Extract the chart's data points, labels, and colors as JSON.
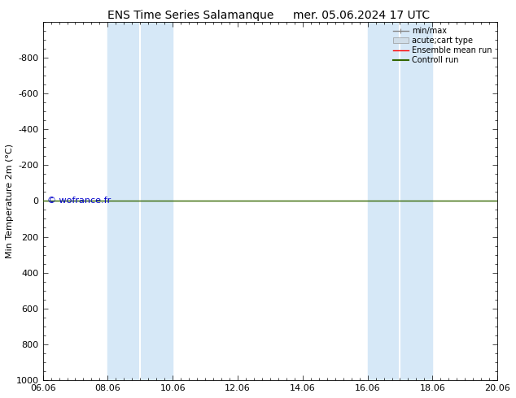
{
  "title": "ENS Time Series Salamanque",
  "date_str": "mer. 05.06.2024 17 UTC",
  "ylabel": "Min Temperature 2m (°C)",
  "xlim": [
    0,
    14
  ],
  "ylim": [
    1000,
    -1000
  ],
  "yticks": [
    -800,
    -600,
    -400,
    -200,
    0,
    200,
    400,
    600,
    800,
    1000
  ],
  "xtick_labels": [
    "06.06",
    "08.06",
    "10.06",
    "12.06",
    "14.06",
    "16.06",
    "18.06",
    "20.06"
  ],
  "xtick_positions": [
    0,
    2,
    4,
    6,
    8,
    10,
    12,
    14
  ],
  "shaded_bands": [
    [
      2,
      3
    ],
    [
      3.5,
      4
    ],
    [
      10,
      10.5
    ],
    [
      11,
      12
    ]
  ],
  "shaded_color": "#d6e8f7",
  "control_run_y": 0,
  "watermark": "© wofrance.fr",
  "legend_labels": [
    "min/max",
    "acute;cart type",
    "Ensemble mean run",
    "Controll run"
  ],
  "legend_line_color": "#888888",
  "legend_box_color": "#d0dde8",
  "legend_red": "#ff0000",
  "legend_green": "#336600",
  "background_color": "#ffffff",
  "plot_bg_color": "#ffffff",
  "title_fontsize": 10,
  "axis_fontsize": 8,
  "tick_fontsize": 8
}
